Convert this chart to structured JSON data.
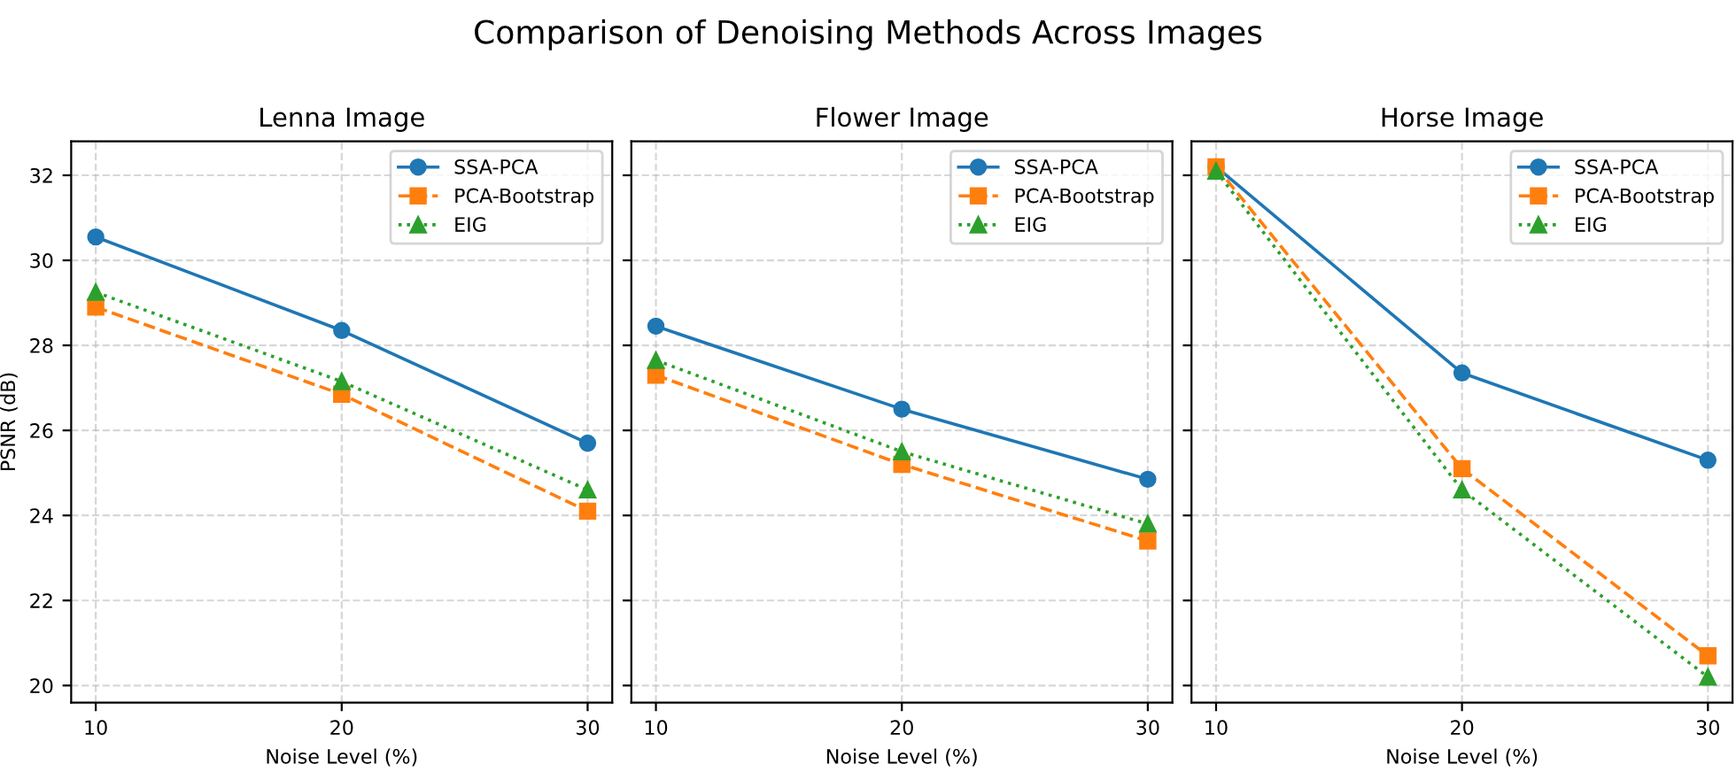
{
  "chart_data": [
    {
      "type": "line",
      "title": "Lenna Image",
      "annotations": [
        "Comparison of Denoising Methods Across Images"
      ],
      "xlabel": "Noise Level (%)",
      "ylabel": "PSNR (dB)",
      "x": [
        10,
        20,
        30
      ],
      "xlim": [
        9,
        31
      ],
      "xticks": [
        10,
        20,
        30
      ],
      "ylim": [
        19.6,
        32.8
      ],
      "yticks": [
        20,
        22,
        24,
        26,
        28,
        30,
        32
      ],
      "grid": true,
      "legend": "top right",
      "series": [
        {
          "name": "SSA-PCA",
          "color": "#1f77b4",
          "marker": "circle",
          "line_style": "solid",
          "values": [
            30.55,
            28.35,
            25.7
          ]
        },
        {
          "name": "PCA-Bootstrap",
          "color": "#ff7f0e",
          "marker": "square",
          "line_style": "dashed",
          "values": [
            28.9,
            26.85,
            24.1
          ]
        },
        {
          "name": "EIG",
          "color": "#2ca02c",
          "marker": "triangle",
          "line_style": "dotted",
          "values": [
            29.25,
            27.15,
            24.6
          ]
        }
      ]
    },
    {
      "type": "line",
      "title": "Flower Image",
      "xlabel": "Noise Level (%)",
      "x": [
        10,
        20,
        30
      ],
      "xlim": [
        9,
        31
      ],
      "xticks": [
        10,
        20,
        30
      ],
      "ylim": [
        19.6,
        32.8
      ],
      "yticks": [
        20,
        22,
        24,
        26,
        28,
        30,
        32
      ],
      "grid": true,
      "legend": "top right",
      "tick_labels": "x",
      "series": [
        {
          "name": "SSA-PCA",
          "color": "#1f77b4",
          "marker": "circle",
          "line_style": "solid",
          "values": [
            28.45,
            26.5,
            24.85
          ]
        },
        {
          "name": "PCA-Bootstrap",
          "color": "#ff7f0e",
          "marker": "square",
          "line_style": "dashed",
          "values": [
            27.3,
            25.2,
            23.4
          ]
        },
        {
          "name": "EIG",
          "color": "#2ca02c",
          "marker": "triangle",
          "line_style": "dotted",
          "values": [
            27.65,
            25.5,
            23.8
          ]
        }
      ]
    },
    {
      "type": "line",
      "title": "Horse Image",
      "xlabel": "Noise Level (%)",
      "x": [
        10,
        20,
        30
      ],
      "xlim": [
        9,
        31
      ],
      "xticks": [
        10,
        20,
        30
      ],
      "ylim": [
        19.6,
        32.8
      ],
      "yticks": [
        20,
        22,
        24,
        26,
        28,
        30,
        32
      ],
      "grid": true,
      "legend": "top right",
      "tick_labels": "x",
      "series": [
        {
          "name": "SSA-PCA",
          "color": "#1f77b4",
          "marker": "circle",
          "line_style": "solid",
          "values": [
            32.2,
            27.35,
            25.3
          ]
        },
        {
          "name": "PCA-Bootstrap",
          "color": "#ff7f0e",
          "marker": "square",
          "line_style": "dashed",
          "values": [
            32.2,
            25.1,
            20.7
          ]
        },
        {
          "name": "EIG",
          "color": "#2ca02c",
          "marker": "triangle",
          "line_style": "dotted",
          "values": [
            32.1,
            24.6,
            20.2
          ]
        }
      ]
    }
  ]
}
